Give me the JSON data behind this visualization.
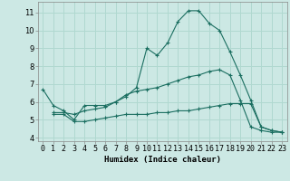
{
  "xlabel": "Humidex (Indice chaleur)",
  "background_color": "#cce8e4",
  "grid_color": "#b0d8d0",
  "line_color": "#1a6e60",
  "xlim": [
    -0.5,
    23.5
  ],
  "ylim": [
    3.8,
    11.6
  ],
  "yticks": [
    4,
    5,
    6,
    7,
    8,
    9,
    10,
    11
  ],
  "xticks": [
    0,
    1,
    2,
    3,
    4,
    5,
    6,
    7,
    8,
    9,
    10,
    11,
    12,
    13,
    14,
    15,
    16,
    17,
    18,
    19,
    20,
    21,
    22,
    23
  ],
  "series": [
    {
      "x": [
        0,
        1,
        2,
        3,
        4,
        5,
        6,
        7,
        8,
        9,
        10,
        11,
        12,
        13,
        14,
        15,
        16,
        17,
        18,
        19,
        20,
        21,
        22,
        23
      ],
      "y": [
        6.7,
        5.8,
        5.5,
        5.0,
        5.8,
        5.8,
        5.8,
        6.0,
        6.3,
        6.8,
        9.0,
        8.6,
        9.3,
        10.5,
        11.1,
        11.1,
        10.4,
        10.0,
        8.8,
        7.5,
        6.1,
        4.6,
        4.4,
        4.3
      ]
    },
    {
      "x": [
        1,
        2,
        3,
        4,
        5,
        6,
        7,
        8,
        9,
        10,
        11,
        12,
        13,
        14,
        15,
        16,
        17,
        18,
        19,
        20,
        21,
        22,
        23
      ],
      "y": [
        5.4,
        5.4,
        5.3,
        5.5,
        5.6,
        5.7,
        6.0,
        6.4,
        6.6,
        6.7,
        6.8,
        7.0,
        7.2,
        7.4,
        7.5,
        7.7,
        7.8,
        7.5,
        6.1,
        4.6,
        4.4,
        4.3,
        4.3
      ]
    },
    {
      "x": [
        1,
        2,
        3,
        4,
        5,
        6,
        7,
        8,
        9,
        10,
        11,
        12,
        13,
        14,
        15,
        16,
        17,
        18,
        19,
        20,
        21,
        22,
        23
      ],
      "y": [
        5.3,
        5.3,
        4.9,
        4.9,
        5.0,
        5.1,
        5.2,
        5.3,
        5.3,
        5.3,
        5.4,
        5.4,
        5.5,
        5.5,
        5.6,
        5.7,
        5.8,
        5.9,
        5.9,
        5.9,
        4.6,
        4.4,
        4.3
      ]
    }
  ]
}
